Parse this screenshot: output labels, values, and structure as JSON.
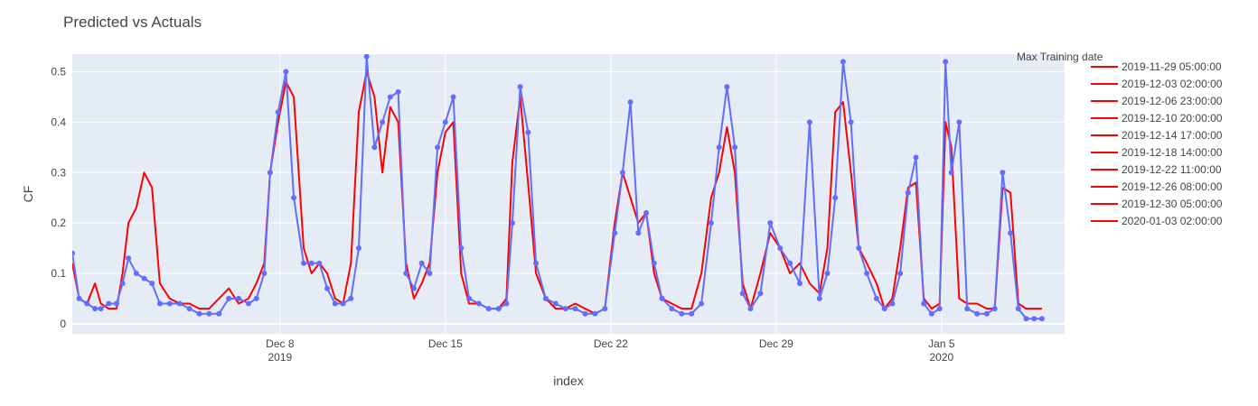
{
  "chart_data": {
    "type": "line",
    "title": "Predicted vs Actuals",
    "xlabel": "index",
    "ylabel": "CF",
    "x_range": [
      "2019-11-29 05:00",
      "2020-01-10 05:00"
    ],
    "ylim": [
      -0.02,
      0.535
    ],
    "grid": true,
    "legend_title": "Max Training date",
    "legend_position": "right",
    "x_ticks": [
      {
        "date": "2019-12-08",
        "label": "Dec 8",
        "sub": "2019"
      },
      {
        "date": "2019-12-15",
        "label": "Dec 15",
        "sub": ""
      },
      {
        "date": "2019-12-22",
        "label": "Dec 22",
        "sub": ""
      },
      {
        "date": "2019-12-29",
        "label": "Dec 29",
        "sub": ""
      },
      {
        "date": "2020-01-05",
        "label": "Jan 5",
        "sub": "2020"
      }
    ],
    "y_ticks": [
      0,
      0.1,
      0.2,
      0.3,
      0.4,
      0.5
    ],
    "y_tick_labels": [
      "0",
      "0.1",
      "0.2",
      "0.3",
      "0.4",
      "0.5"
    ],
    "colors": {
      "predicted": "#ff0000",
      "actual": "#636efa",
      "plot_bg": "#e5ecf6",
      "grid": "#ffffff"
    },
    "series": [
      {
        "role": "predicted",
        "mode": "lines",
        "color": "#ff0000",
        "x": [
          "2019-11-29 05:00",
          "2019-11-29 12:00",
          "2019-11-29 20:00",
          "2019-11-30 04:00",
          "2019-11-30 10:00",
          "2019-11-30 18:00",
          "2019-12-01 02:00",
          "2019-12-01 08:00",
          "2019-12-01 14:00",
          "2019-12-01 22:00",
          "2019-12-02 06:00",
          "2019-12-02 14:00",
          "2019-12-02 22:00",
          "2019-12-03 08:00",
          "2019-12-03 18:00",
          "2019-12-04 04:00",
          "2019-12-04 14:00",
          "2019-12-05 00:00",
          "2019-12-05 10:00",
          "2019-12-05 20:00",
          "2019-12-06 06:00",
          "2019-12-06 16:00",
          "2019-12-07 00:00",
          "2019-12-07 08:00",
          "2019-12-07 14:00",
          "2019-12-07 22:00",
          "2019-12-08 06:00",
          "2019-12-08 14:00",
          "2019-12-09 00:00",
          "2019-12-09 08:00",
          "2019-12-09 16:00",
          "2019-12-10 00:00",
          "2019-12-10 08:00",
          "2019-12-10 16:00",
          "2019-12-11 00:00",
          "2019-12-11 08:00",
          "2019-12-11 16:00",
          "2019-12-12 00:00",
          "2019-12-12 08:00",
          "2019-12-12 16:00",
          "2019-12-13 00:00",
          "2019-12-13 08:00",
          "2019-12-13 16:00",
          "2019-12-14 00:00",
          "2019-12-14 08:00",
          "2019-12-14 16:00",
          "2019-12-15 00:00",
          "2019-12-15 08:00",
          "2019-12-15 16:00",
          "2019-12-16 00:00",
          "2019-12-16 10:00",
          "2019-12-16 20:00",
          "2019-12-17 06:00",
          "2019-12-17 14:00",
          "2019-12-17 20:00",
          "2019-12-18 04:00",
          "2019-12-18 12:00",
          "2019-12-18 20:00",
          "2019-12-19 06:00",
          "2019-12-19 16:00",
          "2019-12-20 02:00",
          "2019-12-20 12:00",
          "2019-12-20 22:00",
          "2019-12-21 08:00",
          "2019-12-21 18:00",
          "2019-12-22 04:00",
          "2019-12-22 12:00",
          "2019-12-22 20:00",
          "2019-12-23 04:00",
          "2019-12-23 12:00",
          "2019-12-23 20:00",
          "2019-12-24 04:00",
          "2019-12-24 14:00",
          "2019-12-25 00:00",
          "2019-12-25 10:00",
          "2019-12-25 20:00",
          "2019-12-26 06:00",
          "2019-12-26 14:00",
          "2019-12-26 22:00",
          "2019-12-27 06:00",
          "2019-12-27 14:00",
          "2019-12-27 22:00",
          "2019-12-28 08:00",
          "2019-12-28 18:00",
          "2019-12-29 04:00",
          "2019-12-29 14:00",
          "2019-12-30 00:00",
          "2019-12-30 10:00",
          "2019-12-30 20:00",
          "2019-12-31 04:00",
          "2019-12-31 12:00",
          "2019-12-31 20:00",
          "2020-01-01 04:00",
          "2020-01-01 12:00",
          "2020-01-01 20:00",
          "2020-01-02 06:00",
          "2020-01-02 14:00",
          "2020-01-02 22:00",
          "2020-01-03 06:00",
          "2020-01-03 14:00",
          "2020-01-03 22:00",
          "2020-01-04 06:00",
          "2020-01-04 14:00",
          "2020-01-04 22:00",
          "2020-01-05 04:00",
          "2020-01-05 10:00",
          "2020-01-05 18:00",
          "2020-01-06 02:00",
          "2020-01-06 12:00",
          "2020-01-06 22:00",
          "2020-01-07 06:00",
          "2020-01-07 14:00",
          "2020-01-07 22:00",
          "2020-01-08 06:00",
          "2020-01-08 14:00",
          "2020-01-08 22:00",
          "2020-01-09 06:00"
        ],
        "y": [
          0.12,
          0.05,
          0.04,
          0.08,
          0.04,
          0.03,
          0.03,
          0.1,
          0.2,
          0.23,
          0.3,
          0.27,
          0.08,
          0.05,
          0.04,
          0.04,
          0.03,
          0.03,
          0.05,
          0.07,
          0.04,
          0.05,
          0.08,
          0.12,
          0.3,
          0.4,
          0.48,
          0.45,
          0.15,
          0.1,
          0.12,
          0.1,
          0.05,
          0.04,
          0.12,
          0.42,
          0.5,
          0.45,
          0.3,
          0.43,
          0.4,
          0.12,
          0.05,
          0.08,
          0.12,
          0.3,
          0.38,
          0.4,
          0.1,
          0.04,
          0.04,
          0.03,
          0.03,
          0.05,
          0.32,
          0.45,
          0.28,
          0.1,
          0.05,
          0.03,
          0.03,
          0.04,
          0.03,
          0.02,
          0.03,
          0.2,
          0.3,
          0.25,
          0.2,
          0.22,
          0.1,
          0.05,
          0.04,
          0.03,
          0.03,
          0.1,
          0.25,
          0.3,
          0.39,
          0.3,
          0.08,
          0.03,
          0.1,
          0.18,
          0.15,
          0.1,
          0.12,
          0.08,
          0.06,
          0.15,
          0.42,
          0.44,
          0.3,
          0.15,
          0.12,
          0.08,
          0.03,
          0.05,
          0.15,
          0.27,
          0.28,
          0.05,
          0.03,
          0.04,
          0.4,
          0.35,
          0.05,
          0.04,
          0.04,
          0.03,
          0.03,
          0.27,
          0.26,
          0.04,
          0.03,
          0.03,
          0.03
        ],
        "max_training_date": "2019-12-26 08:00"
      },
      {
        "role": "actual",
        "mode": "lines+markers",
        "color": "#636efa",
        "x": [
          "2019-11-29 05:00",
          "2019-11-29 12:00",
          "2019-11-29 20:00",
          "2019-11-30 04:00",
          "2019-11-30 10:00",
          "2019-11-30 18:00",
          "2019-12-01 02:00",
          "2019-12-01 08:00",
          "2019-12-01 14:00",
          "2019-12-01 22:00",
          "2019-12-02 06:00",
          "2019-12-02 14:00",
          "2019-12-02 22:00",
          "2019-12-03 08:00",
          "2019-12-03 18:00",
          "2019-12-04 04:00",
          "2019-12-04 14:00",
          "2019-12-05 00:00",
          "2019-12-05 10:00",
          "2019-12-05 20:00",
          "2019-12-06 06:00",
          "2019-12-06 16:00",
          "2019-12-07 00:00",
          "2019-12-07 08:00",
          "2019-12-07 14:00",
          "2019-12-07 22:00",
          "2019-12-08 06:00",
          "2019-12-08 14:00",
          "2019-12-09 00:00",
          "2019-12-09 08:00",
          "2019-12-09 16:00",
          "2019-12-10 00:00",
          "2019-12-10 08:00",
          "2019-12-10 16:00",
          "2019-12-11 00:00",
          "2019-12-11 08:00",
          "2019-12-11 16:00",
          "2019-12-12 00:00",
          "2019-12-12 08:00",
          "2019-12-12 16:00",
          "2019-12-13 00:00",
          "2019-12-13 08:00",
          "2019-12-13 16:00",
          "2019-12-14 00:00",
          "2019-12-14 08:00",
          "2019-12-14 16:00",
          "2019-12-15 00:00",
          "2019-12-15 08:00",
          "2019-12-15 16:00",
          "2019-12-16 00:00",
          "2019-12-16 10:00",
          "2019-12-16 20:00",
          "2019-12-17 06:00",
          "2019-12-17 14:00",
          "2019-12-17 20:00",
          "2019-12-18 04:00",
          "2019-12-18 12:00",
          "2019-12-18 20:00",
          "2019-12-19 06:00",
          "2019-12-19 16:00",
          "2019-12-20 02:00",
          "2019-12-20 12:00",
          "2019-12-20 22:00",
          "2019-12-21 08:00",
          "2019-12-21 18:00",
          "2019-12-22 04:00",
          "2019-12-22 12:00",
          "2019-12-22 20:00",
          "2019-12-23 04:00",
          "2019-12-23 12:00",
          "2019-12-23 20:00",
          "2019-12-24 04:00",
          "2019-12-24 14:00",
          "2019-12-25 00:00",
          "2019-12-25 10:00",
          "2019-12-25 20:00",
          "2019-12-26 06:00",
          "2019-12-26 14:00",
          "2019-12-26 22:00",
          "2019-12-27 06:00",
          "2019-12-27 14:00",
          "2019-12-27 22:00",
          "2019-12-28 08:00",
          "2019-12-28 18:00",
          "2019-12-29 04:00",
          "2019-12-29 14:00",
          "2019-12-30 00:00",
          "2019-12-30 10:00",
          "2019-12-30 20:00",
          "2019-12-31 04:00",
          "2019-12-31 12:00",
          "2019-12-31 20:00",
          "2020-01-01 04:00",
          "2020-01-01 12:00",
          "2020-01-01 20:00",
          "2020-01-02 06:00",
          "2020-01-02 14:00",
          "2020-01-02 22:00",
          "2020-01-03 06:00",
          "2020-01-03 14:00",
          "2020-01-03 22:00",
          "2020-01-04 06:00",
          "2020-01-04 14:00",
          "2020-01-04 22:00",
          "2020-01-05 04:00",
          "2020-01-05 10:00",
          "2020-01-05 18:00",
          "2020-01-06 02:00",
          "2020-01-06 12:00",
          "2020-01-06 22:00",
          "2020-01-07 06:00",
          "2020-01-07 14:00",
          "2020-01-07 22:00",
          "2020-01-08 06:00",
          "2020-01-08 14:00",
          "2020-01-08 22:00",
          "2020-01-09 06:00"
        ],
        "y": [
          0.14,
          0.05,
          0.04,
          0.03,
          0.03,
          0.04,
          0.04,
          0.08,
          0.13,
          0.1,
          0.09,
          0.08,
          0.04,
          0.04,
          0.04,
          0.03,
          0.02,
          0.02,
          0.02,
          0.05,
          0.05,
          0.04,
          0.05,
          0.1,
          0.3,
          0.42,
          0.5,
          0.25,
          0.12,
          0.12,
          0.12,
          0.07,
          0.04,
          0.04,
          0.05,
          0.15,
          0.53,
          0.35,
          0.4,
          0.45,
          0.46,
          0.1,
          0.07,
          0.12,
          0.1,
          0.35,
          0.4,
          0.45,
          0.15,
          0.05,
          0.04,
          0.03,
          0.03,
          0.04,
          0.2,
          0.47,
          0.38,
          0.12,
          0.05,
          0.04,
          0.03,
          0.03,
          0.02,
          0.02,
          0.03,
          0.18,
          0.3,
          0.44,
          0.18,
          0.22,
          0.12,
          0.05,
          0.03,
          0.02,
          0.02,
          0.04,
          0.2,
          0.35,
          0.47,
          0.35,
          0.06,
          0.03,
          0.06,
          0.2,
          0.15,
          0.12,
          0.08,
          0.4,
          0.05,
          0.1,
          0.25,
          0.52,
          0.4,
          0.15,
          0.1,
          0.05,
          0.03,
          0.04,
          0.1,
          0.26,
          0.33,
          0.04,
          0.02,
          0.03,
          0.52,
          0.3,
          0.4,
          0.03,
          0.02,
          0.02,
          0.03,
          0.3,
          0.18,
          0.03,
          0.01,
          0.01,
          0.01
        ]
      }
    ],
    "legend_entries": [
      "2019-11-29 05:00:00",
      "2019-12-03 02:00:00",
      "2019-12-06 23:00:00",
      "2019-12-10 20:00:00",
      "2019-12-14 17:00:00",
      "2019-12-18 14:00:00",
      "2019-12-22 11:00:00",
      "2019-12-26 08:00:00",
      "2019-12-30 05:00:00",
      "2020-01-03 02:00:00"
    ]
  }
}
